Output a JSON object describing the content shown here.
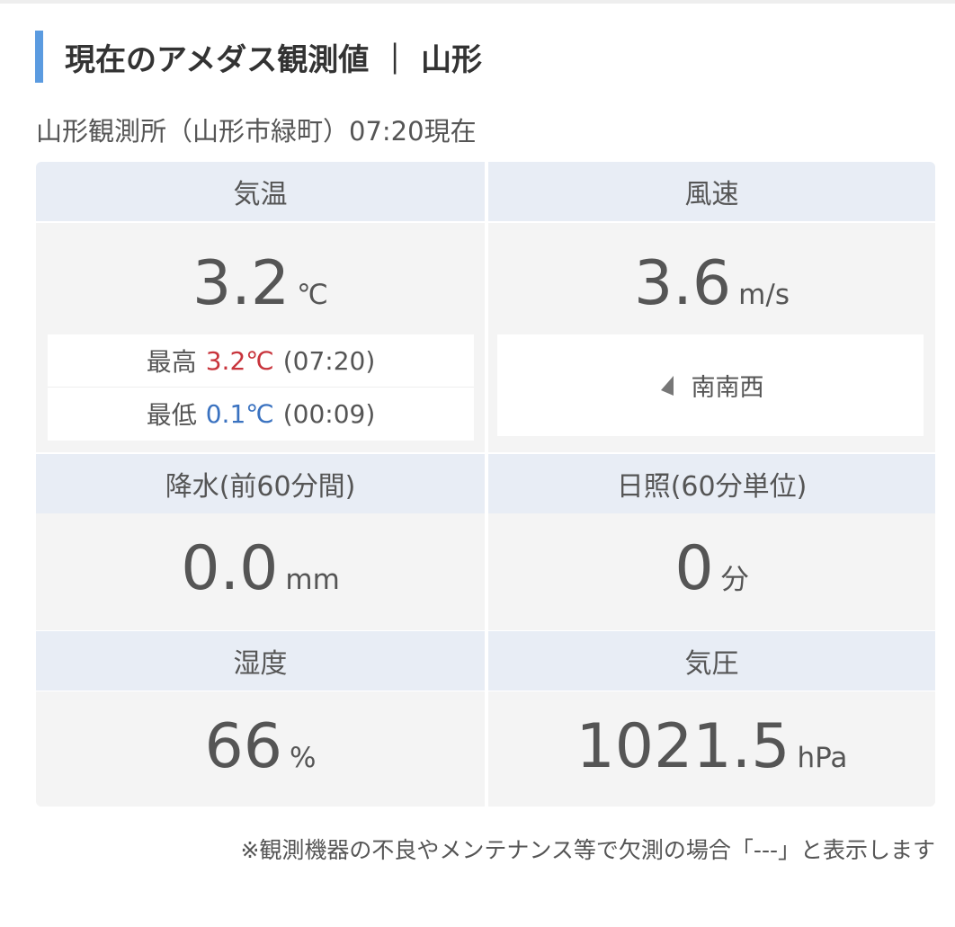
{
  "header": {
    "title": "現在のアメダス観測値 ｜ 山形",
    "subtitle": "山形観測所（山形市緑町）07:20現在"
  },
  "cells": [
    {
      "label": "気温",
      "value": "3.2",
      "unit": "℃",
      "max": {
        "label": "最高",
        "value": "3.2℃",
        "time": "(07:20)"
      },
      "min": {
        "label": "最低",
        "value": "0.1℃",
        "time": "(00:09)"
      }
    },
    {
      "label": "風速",
      "value": "3.6",
      "unit": "m/s",
      "direction": "南南西"
    },
    {
      "label": "降水(前60分間)",
      "value": "0.0",
      "unit": "mm"
    },
    {
      "label": "日照(60分単位)",
      "value": "0",
      "unit": "分"
    },
    {
      "label": "湿度",
      "value": "66",
      "unit": "%"
    },
    {
      "label": "気圧",
      "value": "1021.5",
      "unit": "hPa"
    }
  ],
  "note": "※観測機器の不良やメンテナンス等で欠測の場合「---」と表示します"
}
